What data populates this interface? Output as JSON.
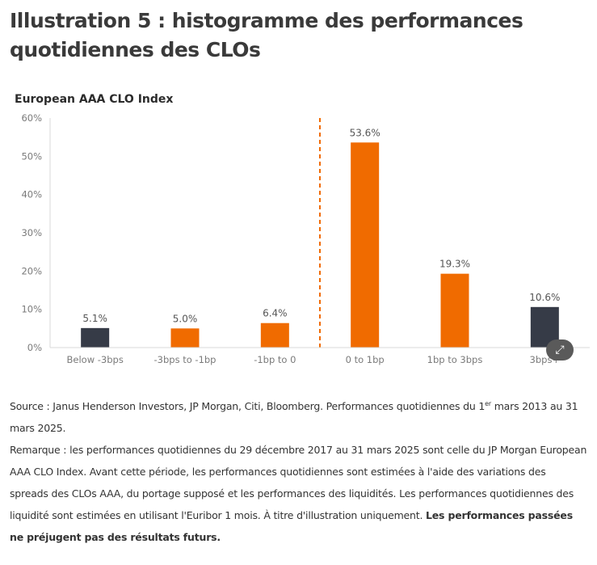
{
  "header": {
    "title_line1": "Illustration 5 : histogramme des performances",
    "title_line2": "quotidiennes des CLOs"
  },
  "chart_data": {
    "type": "bar",
    "title": "European AAA CLO Index",
    "categories": [
      "Below -3bps",
      "-3bps to -1bp",
      "-1bp to 0",
      "0 to 1bp",
      "1bp to 3bps",
      "3bps+"
    ],
    "values": [
      5.1,
      5.0,
      6.4,
      53.6,
      19.3,
      10.6
    ],
    "value_labels": [
      "5.1%",
      "5.0%",
      "6.4%",
      "53.6%",
      "19.3%",
      "10.6%"
    ],
    "bar_colors": [
      "#363b47",
      "#f06b00",
      "#f06b00",
      "#f06b00",
      "#f06b00",
      "#363b47"
    ],
    "ylim": [
      0,
      60
    ],
    "yticks": [
      0,
      10,
      20,
      30,
      40,
      50,
      60
    ],
    "ytick_labels": [
      "0%",
      "10%",
      "20%",
      "30%",
      "40%",
      "50%",
      "60%"
    ],
    "xlabel": "",
    "ylabel": "",
    "grid": false,
    "divider_after_category": "-1bp to 0",
    "divider_color": "#f06b00"
  },
  "expand_button": {
    "icon": "expand-icon",
    "glyph": "⤢"
  },
  "notes": {
    "source_a": "Source : Janus Henderson Investors, JP Morgan, Citi, Bloomberg. Performances quotidiennes du 1",
    "source_sup": "er",
    "source_b": " mars 2013 au 31 mars 2025.",
    "remark": "Remarque : les performances quotidiennes du 29 décembre 2017 au 31 mars 2025 sont celle du JP Morgan European AAA CLO Index. Avant cette période, les performances quotidiennes sont estimées à l'aide des variations des spreads des CLOs AAA, du portage supposé et les performances des liquidités. Les performances quotidiennes des liquidité sont estimées en utilisant l'Euribor 1 mois. À titre d'illustration uniquement. ",
    "disclaimer": "Les performances passées ne préjugent pas des résultats futurs."
  }
}
